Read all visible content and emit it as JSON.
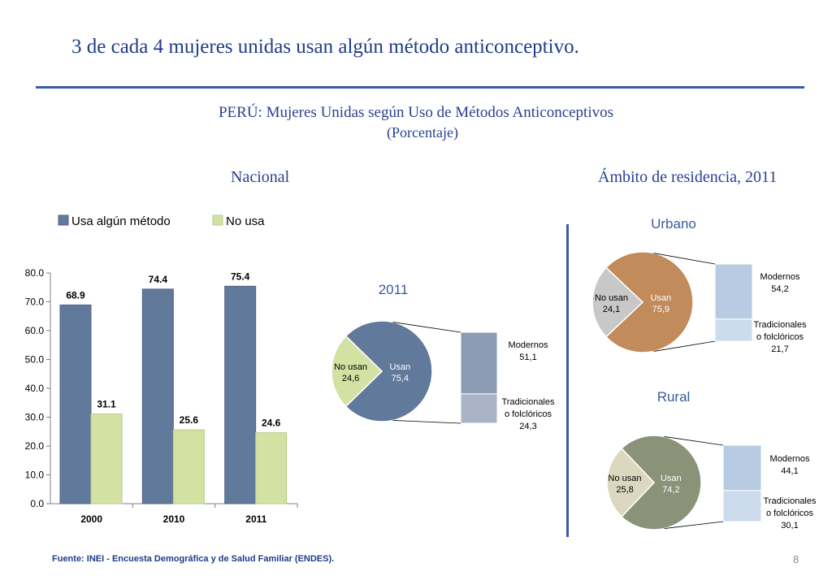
{
  "slide": {
    "title": "3 de cada 4 mujeres unidas usan algún método anticonceptivo.",
    "page_number": "8",
    "footer": "Fuente: INEI - Encuesta Demográfica y de Salud Familiar (ENDES)."
  },
  "colors": {
    "usa": "#61799a",
    "no_usa": "#d3e2a3",
    "title_blue": "#1f3c88",
    "urbano_usan": "#c18b5b",
    "rural_usan": "#8a9278"
  },
  "chart_data": [
    {
      "type": "bar",
      "title": "PERÚ: Mujeres Unidas según Uso de Métodos Anticonceptivos",
      "subtitle": "(Porcentaje)",
      "section": "Nacional",
      "categories": [
        "2000",
        "2010",
        "2011"
      ],
      "series": [
        {
          "name": "Usa algún método",
          "values": [
            68.9,
            74.4,
            75.4
          ]
        },
        {
          "name": "No usa",
          "values": [
            31.1,
            25.6,
            24.6
          ]
        }
      ],
      "ylim": [
        0,
        80
      ],
      "yticks": [
        "0.0",
        "10.0",
        "20.0",
        "30.0",
        "40.0",
        "50.0",
        "60.0",
        "70.0",
        "80.0"
      ],
      "value_labels": [
        [
          "68.9",
          "74.4",
          "75.4"
        ],
        [
          "31.1",
          "25.6",
          "24.6"
        ]
      ],
      "legend": "top"
    },
    {
      "type": "pie",
      "label": "2011",
      "slices": [
        {
          "label": "Usan",
          "value_text": "75,4",
          "value": 75.4
        },
        {
          "label": "No usan",
          "value_text": "24,6",
          "value": 24.6
        }
      ],
      "breakdown": [
        {
          "label": "Modernos",
          "value_text": "51,1",
          "value": 51.1
        },
        {
          "label_lines": [
            "Tradicionales",
            "o folclóricos"
          ],
          "value_text": "24,3",
          "value": 24.3
        }
      ]
    },
    {
      "type": "pie",
      "section": "Ámbito de residencia, 2011",
      "label": "Urbano",
      "slices": [
        {
          "label": "Usan",
          "value_text": "75,9",
          "value": 75.9
        },
        {
          "label": "No usan",
          "value_text": "24,1",
          "value": 24.1
        }
      ],
      "breakdown": [
        {
          "label": "Modernos",
          "value_text": "54,2",
          "value": 54.2
        },
        {
          "label_lines": [
            "Tradicionales",
            "o folclóricos"
          ],
          "value_text": "21,7",
          "value": 21.7
        }
      ]
    },
    {
      "type": "pie",
      "label": "Rural",
      "slices": [
        {
          "label": "Usan",
          "value_text": "74,2",
          "value": 74.2
        },
        {
          "label": "No usan",
          "value_text": "25,8",
          "value": 25.8
        }
      ],
      "breakdown": [
        {
          "label": "Modernos",
          "value_text": "44,1",
          "value": 44.1
        },
        {
          "label_lines": [
            "Tradicionales",
            "o folclóricos"
          ],
          "value_text": "30,1",
          "value": 30.1
        }
      ]
    }
  ]
}
